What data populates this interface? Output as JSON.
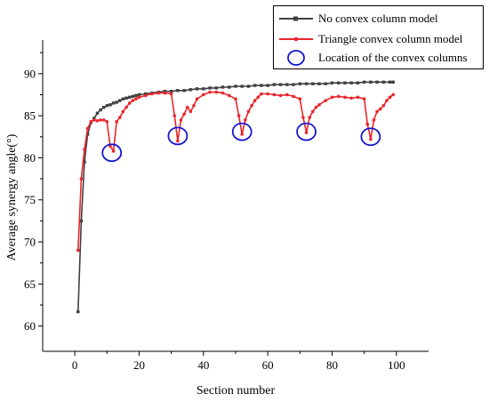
{
  "chart_data": {
    "type": "line",
    "xlabel": "Section number",
    "ylabel": "Average synergy angle(°)",
    "xlim": [
      -10,
      110
    ],
    "ylim": [
      57,
      94
    ],
    "xticks": [
      0,
      20,
      40,
      60,
      80,
      100
    ],
    "yticks": [
      60,
      65,
      70,
      75,
      80,
      85,
      90
    ],
    "grid": false,
    "legend_position": "top-right",
    "series": [
      {
        "name": "No convex column model",
        "color": "#404040",
        "marker": "square",
        "x": [
          1,
          2,
          3,
          4,
          5,
          6,
          7,
          8,
          9,
          10,
          11,
          12,
          13,
          14,
          15,
          16,
          17,
          18,
          19,
          20,
          22,
          24,
          26,
          28,
          30,
          32,
          34,
          36,
          38,
          40,
          42,
          44,
          46,
          48,
          50,
          52,
          54,
          56,
          58,
          60,
          62,
          64,
          66,
          68,
          70,
          72,
          74,
          76,
          78,
          80,
          82,
          84,
          86,
          88,
          90,
          92,
          94,
          96,
          98,
          99
        ],
        "y": [
          61.7,
          72.5,
          79.5,
          82.8,
          84.2,
          84.7,
          85.3,
          85.7,
          86.0,
          86.2,
          86.3,
          86.5,
          86.6,
          86.8,
          87.0,
          87.1,
          87.2,
          87.3,
          87.4,
          87.5,
          87.6,
          87.7,
          87.8,
          87.9,
          87.9,
          88.0,
          88.0,
          88.1,
          88.2,
          88.2,
          88.3,
          88.3,
          88.4,
          88.4,
          88.5,
          88.5,
          88.5,
          88.6,
          88.6,
          88.6,
          88.7,
          88.7,
          88.7,
          88.7,
          88.8,
          88.8,
          88.8,
          88.8,
          88.8,
          88.9,
          88.9,
          88.9,
          88.9,
          88.9,
          89.0,
          89.0,
          89.0,
          89.0,
          89.0,
          89.0
        ]
      },
      {
        "name": "Triangle convex column model",
        "color": "#e8262c",
        "marker": "dot",
        "x": [
          1,
          2,
          3,
          4,
          5,
          6,
          7,
          8,
          9,
          10,
          11,
          12,
          13,
          14,
          15,
          16,
          17,
          18,
          19,
          20,
          22,
          24,
          26,
          28,
          30,
          31,
          32,
          33,
          34,
          35,
          36,
          37,
          38,
          40,
          42,
          44,
          46,
          48,
          50,
          51,
          52,
          53,
          54,
          55,
          56,
          57,
          58,
          60,
          62,
          64,
          66,
          68,
          70,
          71,
          72,
          73,
          74,
          75,
          76,
          78,
          80,
          82,
          84,
          86,
          88,
          90,
          91,
          92,
          93,
          94,
          95,
          96,
          97,
          98,
          99
        ],
        "y": [
          69.0,
          77.5,
          81.0,
          83.5,
          84.3,
          84.5,
          84.4,
          84.5,
          84.5,
          84.3,
          81.4,
          80.8,
          84.3,
          84.8,
          85.5,
          86.0,
          86.5,
          86.8,
          87.0,
          87.2,
          87.4,
          87.6,
          87.7,
          87.7,
          87.6,
          85.0,
          82.0,
          84.5,
          85.2,
          86.0,
          85.5,
          86.2,
          87.0,
          87.5,
          87.8,
          87.8,
          87.7,
          87.4,
          87.0,
          85.0,
          82.8,
          84.5,
          85.5,
          86.2,
          86.8,
          87.2,
          87.6,
          87.6,
          87.5,
          87.4,
          87.5,
          87.3,
          87.0,
          84.8,
          83.0,
          84.8,
          85.5,
          86.0,
          86.3,
          86.8,
          87.2,
          87.3,
          87.2,
          87.1,
          87.2,
          87.0,
          84.0,
          82.2,
          84.5,
          85.5,
          85.8,
          86.2,
          86.8,
          87.2,
          87.5
        ]
      }
    ],
    "convex_markers": {
      "name": "Location of the convex columns",
      "color": "#1515d0",
      "points": [
        {
          "x": 11.5,
          "y": 80.6
        },
        {
          "x": 32,
          "y": 82.6
        },
        {
          "x": 52,
          "y": 83.1
        },
        {
          "x": 72,
          "y": 83.1
        },
        {
          "x": 92,
          "y": 82.5
        }
      ]
    }
  }
}
